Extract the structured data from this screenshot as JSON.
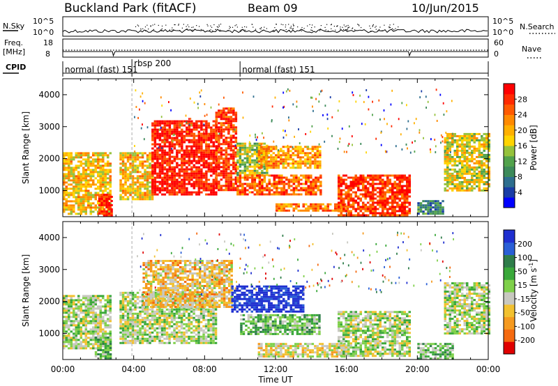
{
  "header": {
    "station": "Buckland Park (fitACF)",
    "beam": "Beam 09",
    "date": "10/Jun/2015"
  },
  "aux_panels": {
    "nsky_label": "N.Sky",
    "nsky_ticks": [
      "10^5",
      "10^0"
    ],
    "nsearch_label": "N.Search",
    "nsearch_ticks": [
      "10^5",
      "10^0"
    ],
    "freq_label_1": "Freq.",
    "freq_label_2": "[MHz]",
    "freq_ticks": [
      "18",
      "8"
    ],
    "nave_label": "Nave",
    "nave_ticks": [
      "60",
      "0"
    ],
    "cpid_label": "CPID",
    "cpid_segments": [
      {
        "name": "normal (fast) 151",
        "start_h": 0.0,
        "end_h": 3.9
      },
      {
        "name": "rbsp 200",
        "start_h": 3.9,
        "end_h": 10.0
      },
      {
        "name": "normal (fast) 151",
        "start_h": 10.0,
        "end_h": 24.0
      }
    ],
    "cpid_extra_label": "151"
  },
  "axes": {
    "x_label": "Time UT",
    "x_ticks": [
      "00:00",
      "04:00",
      "08:00",
      "12:00",
      "16:00",
      "20:00",
      "00:00"
    ],
    "x_range_h": [
      0,
      24
    ],
    "y_label": "Slant Range [km]",
    "y_ticks": [
      "1000",
      "2000",
      "3000",
      "4000"
    ],
    "y_range_km": [
      180,
      4500
    ]
  },
  "colorbars": {
    "power_label": "Power [dB]",
    "power_ticks": [
      "4",
      "8",
      "12",
      "16",
      "20",
      "24",
      "28"
    ],
    "power_colors": [
      "#0000ff",
      "#1a3da6",
      "#2e6e8e",
      "#3d8a5a",
      "#52a24c",
      "#95c23c",
      "#ffd400",
      "#ffb000",
      "#ff8a00",
      "#ff5a00",
      "#ff2a00",
      "#ff0000"
    ],
    "velocity_label": "Velocity [m s",
    "velocity_label_sup": "-1",
    "velocity_label_end": "]",
    "velocity_ticks": [
      "200",
      "100",
      "50",
      "15",
      "-15",
      "-50",
      "-100",
      "-200"
    ],
    "velocity_colors": [
      "#1f2fd0",
      "#2a5fd6",
      "#2f7d4a",
      "#3aa83a",
      "#7fd04a",
      "#c8c8c0",
      "#f2c130",
      "#f59a20",
      "#f56a10",
      "#e00000"
    ]
  },
  "chart_data": [
    {
      "type": "heatmap",
      "title": "",
      "xlabel": "Time UT",
      "ylabel": "Slant Range [km]",
      "colorbar": "Power [dB]",
      "xlim_h": [
        0,
        24
      ],
      "ylim_km": [
        180,
        4500
      ],
      "zlim_db": [
        0,
        30
      ],
      "echo_regions": [
        {
          "t0": 0.0,
          "t1": 2.7,
          "r0": 300,
          "r1": 2200,
          "power_db": 18
        },
        {
          "t0": 2.0,
          "t1": 2.8,
          "r0": 200,
          "r1": 900,
          "power_db": 28
        },
        {
          "t0": 3.2,
          "t1": 5.0,
          "r0": 700,
          "r1": 2200,
          "power_db": 18
        },
        {
          "t0": 5.0,
          "t1": 8.6,
          "r0": 900,
          "r1": 3200,
          "power_db": 28
        },
        {
          "t0": 8.6,
          "t1": 9.8,
          "r0": 1000,
          "r1": 3600,
          "power_db": 26
        },
        {
          "t0": 9.8,
          "t1": 11.5,
          "r0": 1500,
          "r1": 2500,
          "power_db": 14
        },
        {
          "t0": 9.8,
          "t1": 14.5,
          "r0": 900,
          "r1": 1500,
          "power_db": 24
        },
        {
          "t0": 11.0,
          "t1": 14.5,
          "r0": 1700,
          "r1": 2400,
          "power_db": 20
        },
        {
          "t0": 12.0,
          "t1": 16.0,
          "r0": 350,
          "r1": 600,
          "power_db": 22
        },
        {
          "t0": 15.5,
          "t1": 19.5,
          "r0": 250,
          "r1": 1500,
          "power_db": 26
        },
        {
          "t0": 20.0,
          "t1": 21.5,
          "r0": 300,
          "r1": 700,
          "power_db": 8
        },
        {
          "t0": 21.5,
          "t1": 24.0,
          "r0": 1000,
          "r1": 2800,
          "power_db": 16
        }
      ]
    },
    {
      "type": "heatmap",
      "title": "",
      "xlabel": "Time UT",
      "ylabel": "Slant Range [km]",
      "colorbar": "Velocity [m s-1]",
      "xlim_h": [
        0,
        24
      ],
      "ylim_km": [
        180,
        4500
      ],
      "zlim_ms": [
        -200,
        200
      ],
      "echo_regions": [
        {
          "t0": 0.0,
          "t1": 2.7,
          "r0": 500,
          "r1": 2200,
          "velocity_ms": 0
        },
        {
          "t0": 1.8,
          "t1": 2.7,
          "r0": 200,
          "r1": 900,
          "velocity_ms": 40
        },
        {
          "t0": 3.2,
          "t1": 8.6,
          "r0": 700,
          "r1": 2300,
          "velocity_ms": 0
        },
        {
          "t0": 4.5,
          "t1": 9.5,
          "r0": 1800,
          "r1": 3300,
          "velocity_ms": -60
        },
        {
          "t0": 9.5,
          "t1": 13.5,
          "r0": 1700,
          "r1": 2500,
          "velocity_ms": 200
        },
        {
          "t0": 10.0,
          "t1": 14.5,
          "r0": 1000,
          "r1": 1600,
          "velocity_ms": 40
        },
        {
          "t0": 11.0,
          "t1": 16.0,
          "r0": 300,
          "r1": 700,
          "velocity_ms": -30
        },
        {
          "t0": 15.5,
          "t1": 19.5,
          "r0": 300,
          "r1": 1700,
          "velocity_ms": 0
        },
        {
          "t0": 20.0,
          "t1": 22.0,
          "r0": 200,
          "r1": 700,
          "velocity_ms": 30
        },
        {
          "t0": 21.5,
          "t1": 24.0,
          "r0": 1000,
          "r1": 2600,
          "velocity_ms": 0
        }
      ]
    }
  ]
}
